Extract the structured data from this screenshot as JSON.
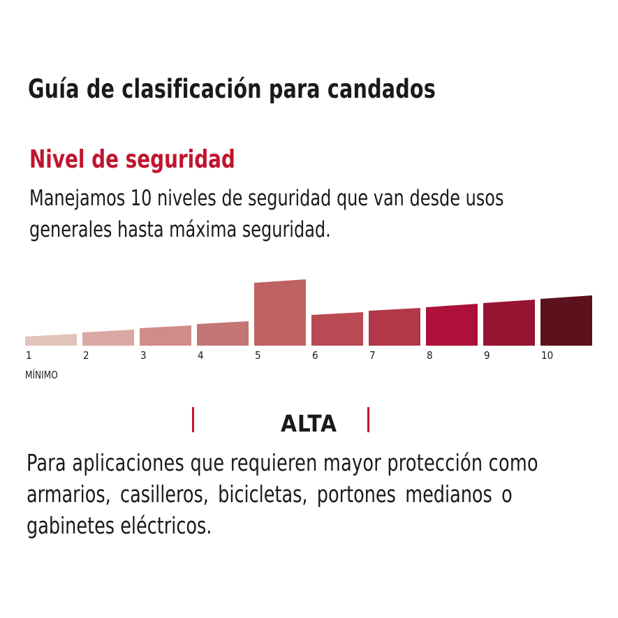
{
  "title": "Guía de clasificación para candados",
  "subtitle": "Nivel de seguridad",
  "description": [
    "Manejamos 10 niveles de seguridad que van desde usos",
    "generales hasta máxima seguridad."
  ],
  "scale": {
    "levels": [
      "1",
      "2",
      "3",
      "4",
      "5",
      "6",
      "7",
      "8",
      "9",
      "10"
    ],
    "highlighted_level": 5,
    "min_label": "MÍNIMO",
    "colors": [
      "#e2c3b9",
      "#d9a8a3",
      "#d18c88",
      "#c47675",
      "#bf6264",
      "#b94a53",
      "#b13749",
      "#ad1038",
      "#961431",
      "#5c111d"
    ]
  },
  "level_name": "ALTA",
  "level_text": [
    "Para aplicaciones que requieren mayor protección como",
    "armarios, casilleros, bicicletas, portones medianos o",
    "gabinetes eléctricos."
  ],
  "accent_color": "#c0152f"
}
